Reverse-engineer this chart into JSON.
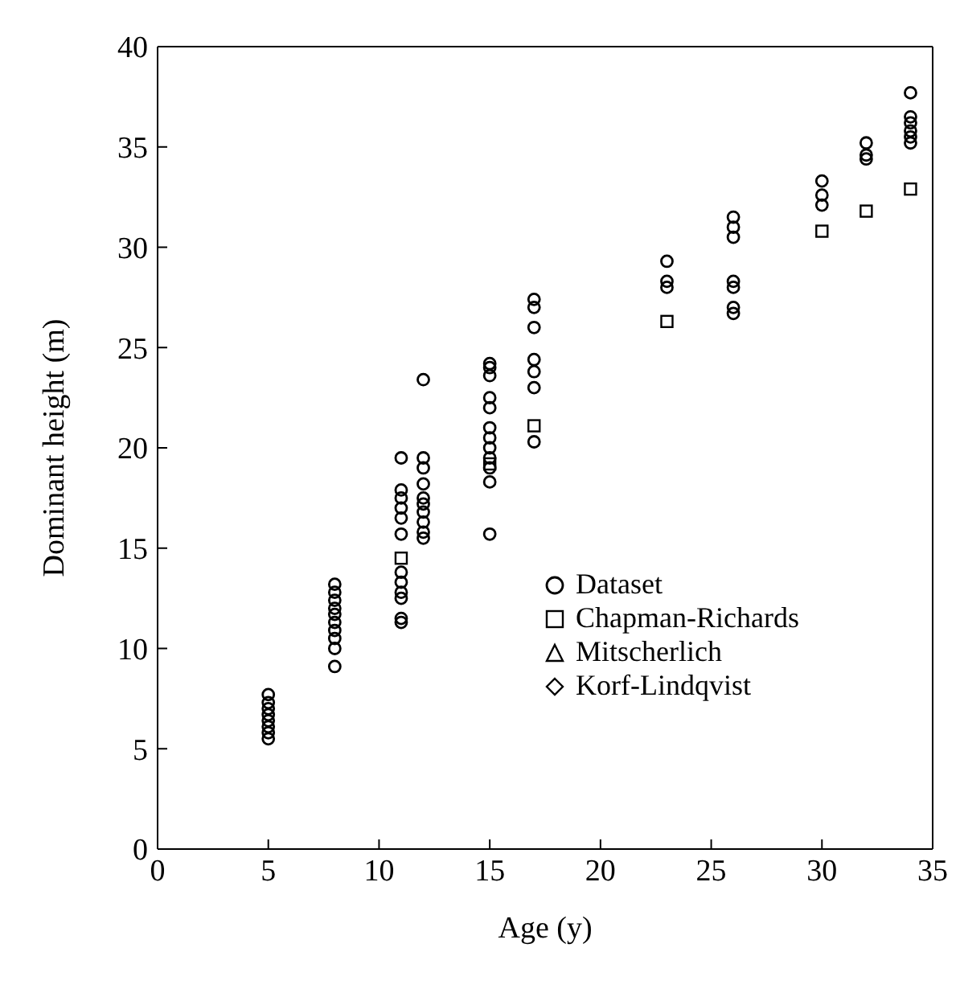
{
  "chart_data": {
    "type": "scatter",
    "xlabel": "Age (y)",
    "ylabel": "Dominant height (m)",
    "xlim": [
      0,
      35
    ],
    "ylim": [
      0,
      40
    ],
    "xticks": [
      0,
      5,
      10,
      15,
      20,
      25,
      30,
      35
    ],
    "yticks": [
      0,
      5,
      10,
      15,
      20,
      25,
      30,
      35,
      40
    ],
    "legend": "right",
    "series": [
      {
        "name": "Dataset",
        "color": "#000000",
        "marker": "circle",
        "x": [
          5,
          5,
          5,
          5,
          5,
          5,
          5,
          5,
          8,
          8,
          8,
          8,
          8,
          8,
          8,
          8,
          8,
          8,
          11,
          11,
          11,
          11,
          11,
          11,
          11,
          11,
          11,
          11,
          11,
          11,
          12,
          12,
          12,
          12,
          12,
          12,
          12,
          12,
          12,
          12,
          15,
          15,
          15,
          15,
          15,
          15,
          15,
          15,
          15,
          15,
          15,
          15,
          17,
          17,
          17,
          17,
          17,
          17,
          17,
          23,
          23,
          23,
          26,
          26,
          26,
          26,
          26,
          26,
          26,
          30,
          30,
          30,
          32,
          32,
          32,
          34,
          34,
          34,
          34,
          34,
          34
        ],
        "values": [
          5.5,
          5.8,
          6.1,
          6.4,
          6.7,
          7.0,
          7.3,
          7.7,
          9.1,
          10.0,
          10.5,
          10.9,
          11.3,
          11.7,
          12.0,
          12.4,
          12.8,
          13.2,
          11.3,
          11.5,
          12.5,
          12.8,
          13.3,
          13.8,
          15.7,
          16.5,
          17.0,
          17.5,
          17.9,
          19.5,
          15.5,
          15.8,
          16.3,
          16.8,
          17.2,
          17.5,
          18.2,
          19.0,
          19.5,
          23.4,
          15.7,
          18.3,
          19.0,
          19.5,
          20.0,
          20.5,
          21.0,
          22.0,
          22.5,
          23.6,
          24.0,
          24.2,
          20.3,
          23.0,
          23.8,
          24.4,
          26.0,
          27.0,
          27.4,
          28.0,
          28.3,
          29.3,
          26.7,
          27.0,
          28.0,
          28.3,
          30.5,
          31.0,
          31.5,
          32.1,
          32.6,
          33.3,
          34.4,
          34.6,
          35.2,
          35.2,
          35.5,
          35.8,
          36.2,
          36.5,
          37.7
        ]
      },
      {
        "name": "Chapman-Richards",
        "color": "#000000",
        "marker": "square",
        "x": [
          11,
          15,
          17,
          23,
          30,
          32,
          34
        ],
        "values": [
          14.5,
          19.2,
          21.1,
          26.3,
          30.8,
          31.8,
          32.9
        ]
      },
      {
        "name": "Mitscherlich",
        "color": "#000000",
        "marker": "triangle"
      },
      {
        "name": "Korf-Lindqvist",
        "color": "#000000",
        "marker": "diamond"
      }
    ]
  }
}
